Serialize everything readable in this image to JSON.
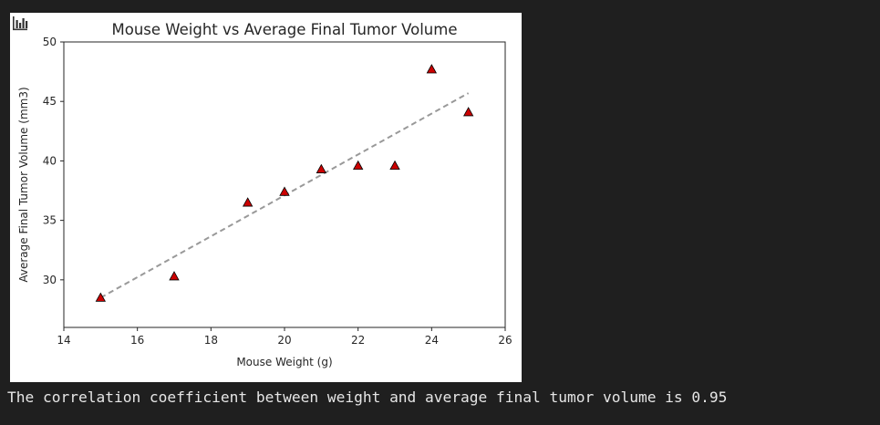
{
  "stdout_text": "The correlation coefficient between weight and average final tumor volume is 0.95",
  "toolbar_icon": "bar-chart-icon",
  "colors": {
    "page_bg": "#1f1f1f",
    "plot_bg": "#ffffff",
    "marker_fill": "#cc0000",
    "marker_edge": "#000000",
    "fit_line": "#999999",
    "text": "#e6e6e6"
  },
  "chart_data": {
    "type": "scatter",
    "title": "Mouse Weight vs Average Final Tumor Volume",
    "xlabel": "Mouse Weight (g)",
    "ylabel": "Average Final Tumor Volume (mm3)",
    "xlim": [
      14,
      26
    ],
    "ylim": [
      26,
      50
    ],
    "xticks": [
      14,
      16,
      18,
      20,
      22,
      24,
      26
    ],
    "yticks": [
      30,
      35,
      40,
      45,
      50
    ],
    "grid": false,
    "marker": "triangle-up",
    "points": [
      {
        "x": 15,
        "y": 28.5
      },
      {
        "x": 17,
        "y": 30.3
      },
      {
        "x": 19,
        "y": 36.5
      },
      {
        "x": 20,
        "y": 37.4
      },
      {
        "x": 21,
        "y": 39.3
      },
      {
        "x": 22,
        "y": 39.6
      },
      {
        "x": 23,
        "y": 39.6
      },
      {
        "x": 24,
        "y": 47.7
      },
      {
        "x": 25,
        "y": 44.1
      }
    ],
    "regression_line": {
      "style": "dashed",
      "x": [
        15,
        25
      ],
      "y": [
        28.5,
        45.7
      ]
    }
  }
}
